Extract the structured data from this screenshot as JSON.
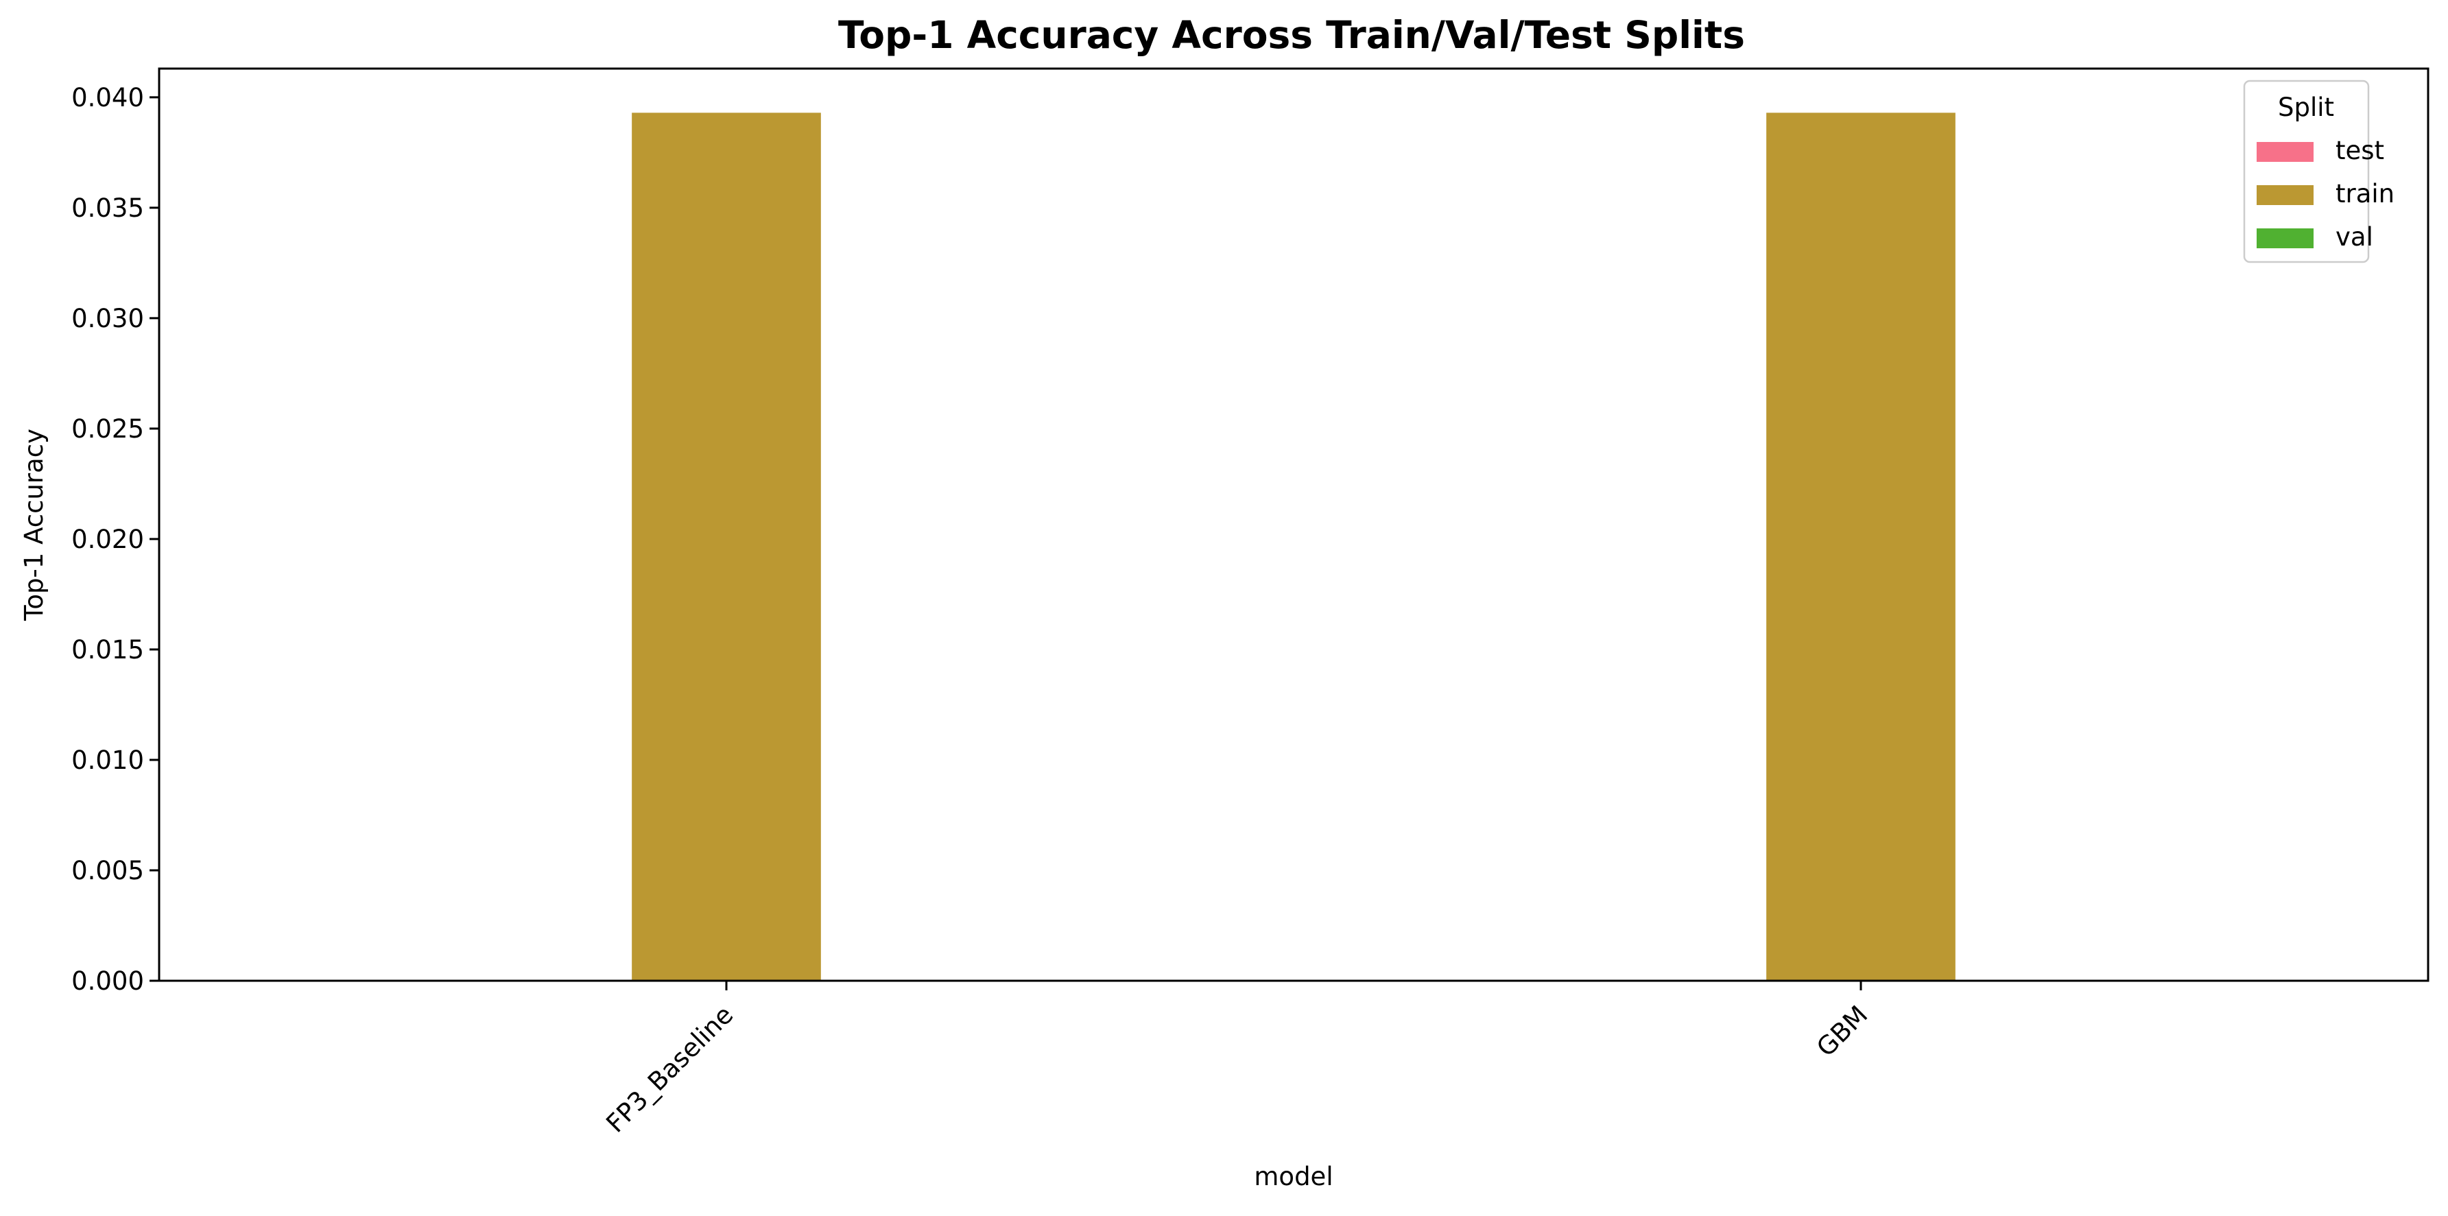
{
  "chart_data": {
    "type": "bar",
    "title": "Top-1 Accuracy Across Train/Val/Test Splits",
    "xlabel": "model",
    "ylabel": "Top-1 Accuracy",
    "categories": [
      "FP3_Baseline",
      "GBM"
    ],
    "ylim": [
      0,
      0.0413
    ],
    "yticks": [
      "0.000",
      "0.005",
      "0.010",
      "0.015",
      "0.020",
      "0.025",
      "0.030",
      "0.035",
      "0.040"
    ],
    "grid": false,
    "legend": {
      "title": "Split",
      "position": "top-right"
    },
    "series": [
      {
        "name": "test",
        "color": "#f77189",
        "values": [
          0,
          0
        ]
      },
      {
        "name": "train",
        "color": "#bb9832",
        "values": [
          0.0393,
          0.0393
        ]
      },
      {
        "name": "val",
        "color": "#50b131",
        "values": [
          0,
          0
        ]
      }
    ]
  }
}
